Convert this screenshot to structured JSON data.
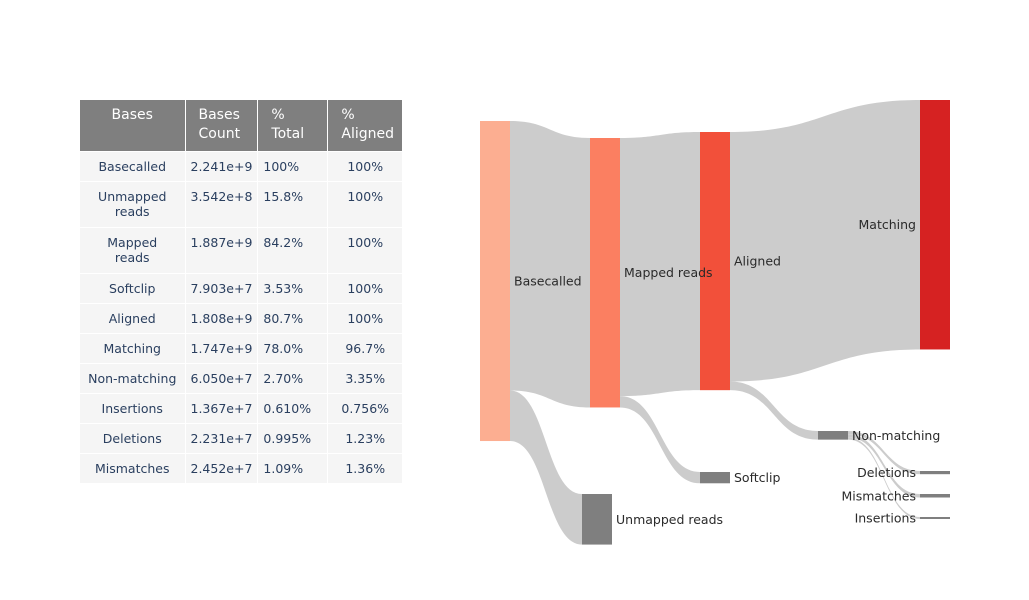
{
  "table": {
    "headers": [
      [
        "Bases"
      ],
      [
        "Bases",
        "Count"
      ],
      [
        "%",
        "Total"
      ],
      [
        "%",
        "Aligned"
      ]
    ],
    "rows": [
      {
        "name": [
          "Basecalled"
        ],
        "count": "2.241e+9",
        "total": "100%",
        "aligned": "100%"
      },
      {
        "name": [
          "Unmapped",
          "reads"
        ],
        "count": "3.542e+8",
        "total": "15.8%",
        "aligned": "100%"
      },
      {
        "name": [
          "Mapped",
          "reads"
        ],
        "count": "1.887e+9",
        "total": "84.2%",
        "aligned": "100%"
      },
      {
        "name": [
          "Softclip"
        ],
        "count": "7.903e+7",
        "total": "3.53%",
        "aligned": "100%"
      },
      {
        "name": [
          "Aligned"
        ],
        "count": "1.808e+9",
        "total": "80.7%",
        "aligned": "100%"
      },
      {
        "name": [
          "Matching"
        ],
        "count": "1.747e+9",
        "total": "78.0%",
        "aligned": "96.7%"
      },
      {
        "name": [
          "Non-matching"
        ],
        "count": "6.050e+7",
        "total": "2.70%",
        "aligned": "3.35%"
      },
      {
        "name": [
          "Insertions"
        ],
        "count": "1.367e+7",
        "total": "0.610%",
        "aligned": "0.756%"
      },
      {
        "name": [
          "Deletions"
        ],
        "count": "2.231e+7",
        "total": "0.995%",
        "aligned": "1.23%"
      },
      {
        "name": [
          "Mismatches"
        ],
        "count": "2.452e+7",
        "total": "1.09%",
        "aligned": "1.36%"
      }
    ]
  },
  "chart_data": {
    "type": "sankey",
    "nodes": [
      {
        "id": "basecalled",
        "label": "Basecalled",
        "color": "#fcae91"
      },
      {
        "id": "mapped",
        "label": "Mapped reads",
        "color": "#fb7f61"
      },
      {
        "id": "unmapped",
        "label": "Unmapped reads",
        "color": "#7f7f7f"
      },
      {
        "id": "aligned",
        "label": "Aligned",
        "color": "#f2503a"
      },
      {
        "id": "softclip",
        "label": "Softclip",
        "color": "#7f7f7f"
      },
      {
        "id": "matching",
        "label": "Matching",
        "color": "#d62222"
      },
      {
        "id": "nonmatching",
        "label": "Non-matching",
        "color": "#7f7f7f"
      },
      {
        "id": "deletions",
        "label": "Deletions",
        "color": "#7f7f7f"
      },
      {
        "id": "mismatches",
        "label": "Mismatches",
        "color": "#7f7f7f"
      },
      {
        "id": "insertions",
        "label": "Insertions",
        "color": "#7f7f7f"
      }
    ],
    "links": [
      {
        "source": "basecalled",
        "target": "mapped",
        "value": 1887000000.0
      },
      {
        "source": "basecalled",
        "target": "unmapped",
        "value": 354200000.0
      },
      {
        "source": "mapped",
        "target": "aligned",
        "value": 1808000000.0
      },
      {
        "source": "mapped",
        "target": "softclip",
        "value": 79030000.0
      },
      {
        "source": "aligned",
        "target": "matching",
        "value": 1747000000.0
      },
      {
        "source": "aligned",
        "target": "nonmatching",
        "value": 60500000.0
      },
      {
        "source": "nonmatching",
        "target": "deletions",
        "value": 22310000.0
      },
      {
        "source": "nonmatching",
        "target": "mismatches",
        "value": 24520000.0
      },
      {
        "source": "nonmatching",
        "target": "insertions",
        "value": 13670000.0
      }
    ],
    "link_color": "#cccccc"
  }
}
